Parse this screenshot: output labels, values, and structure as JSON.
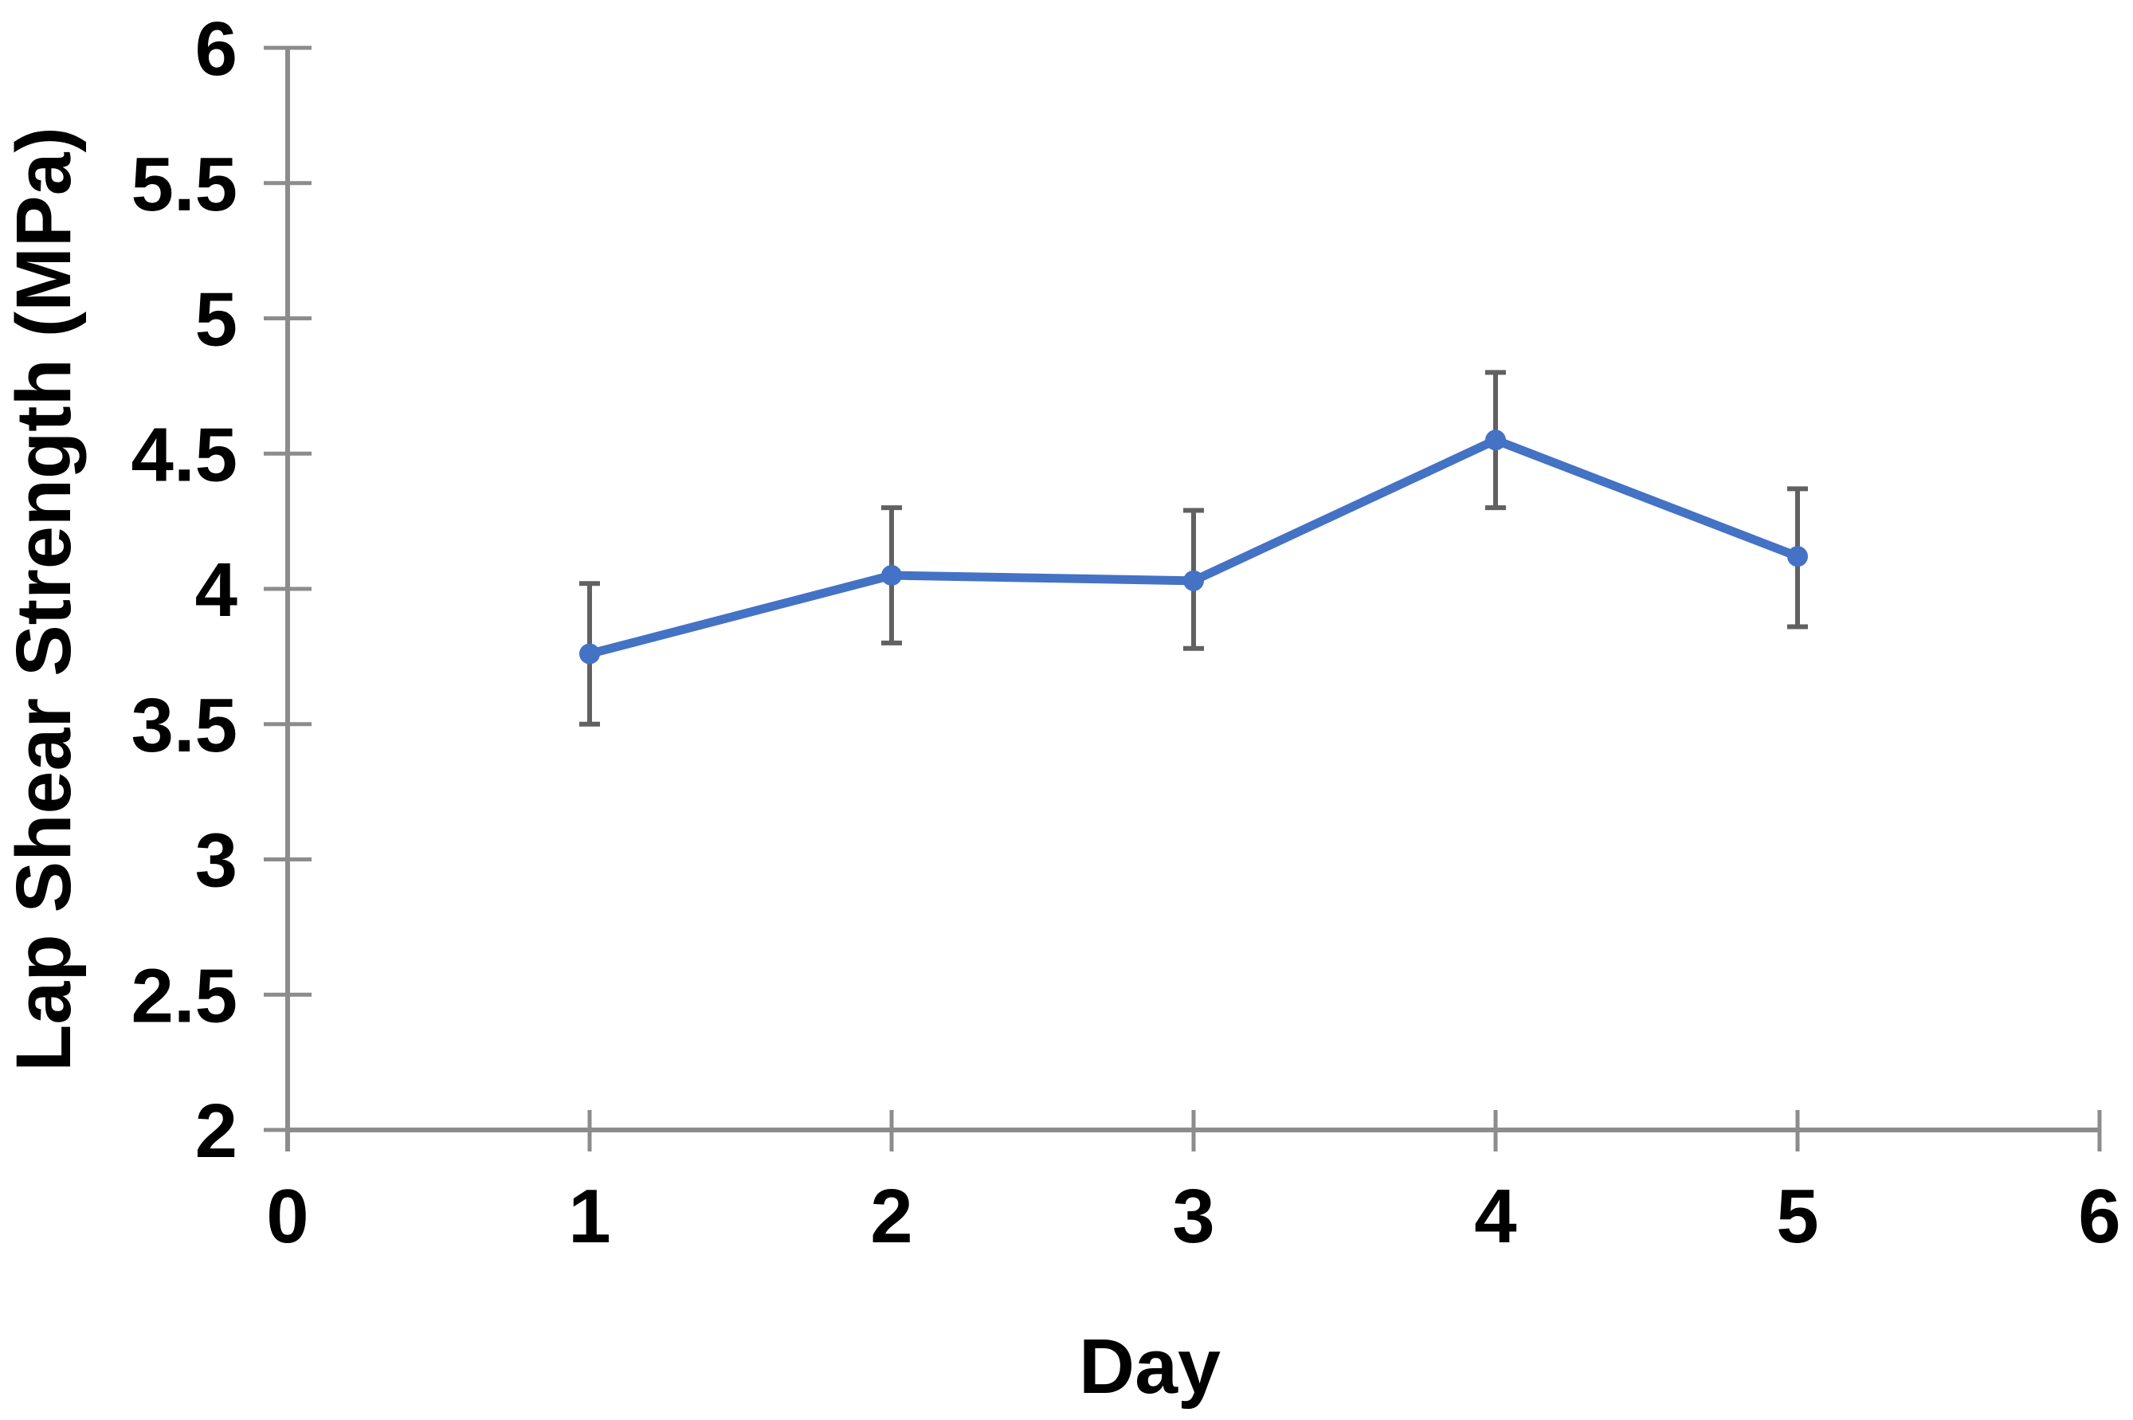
{
  "chart_data": {
    "type": "line",
    "title": "",
    "xlabel": "Day",
    "ylabel": "Lap Shear Strength (MPa)",
    "x": [
      1,
      2,
      3,
      4,
      5
    ],
    "series": [
      {
        "name": "Lap Shear Strength",
        "values": [
          3.76,
          4.05,
          4.03,
          4.55,
          4.12
        ],
        "error_upper": [
          0.26,
          0.25,
          0.26,
          0.25,
          0.25
        ],
        "error_lower": [
          0.26,
          0.25,
          0.25,
          0.25,
          0.26
        ]
      }
    ],
    "xlim": [
      0,
      6
    ],
    "ylim": [
      2,
      6
    ],
    "x_ticks": [
      "0",
      "1",
      "2",
      "3",
      "4",
      "5",
      "6"
    ],
    "y_ticks": [
      "2",
      "2.5",
      "3",
      "3.5",
      "4",
      "4.5",
      "5",
      "5.5",
      "6"
    ],
    "grid": false,
    "legend": false,
    "marker": "circle",
    "colors": {
      "line": "#4472C4",
      "marker": "#4472C4",
      "error_bar": "#616161",
      "axis": "#8C8C8C",
      "text": "#000000",
      "background": "#FFFFFF"
    }
  }
}
